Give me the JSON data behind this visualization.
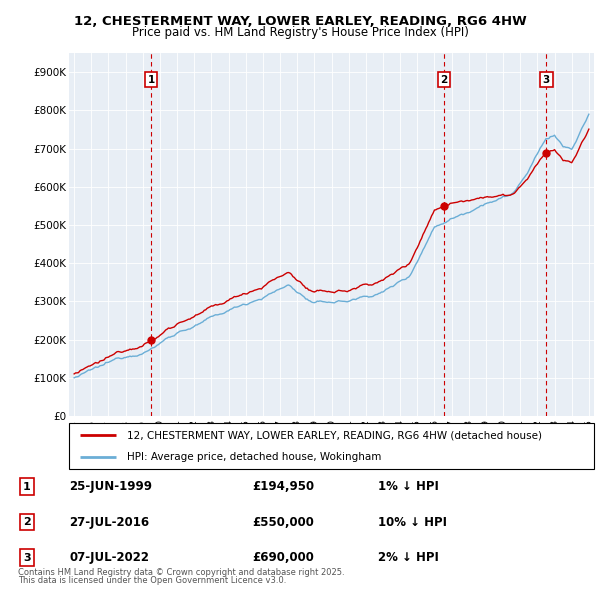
{
  "title1": "12, CHESTERMENT WAY, LOWER EARLEY, READING, RG6 4HW",
  "title2": "Price paid vs. HM Land Registry's House Price Index (HPI)",
  "ylim": [
    0,
    950000
  ],
  "yticks": [
    0,
    100000,
    200000,
    300000,
    400000,
    500000,
    600000,
    700000,
    800000,
    900000
  ],
  "ytick_labels": [
    "£0",
    "£100K",
    "£200K",
    "£300K",
    "£400K",
    "£500K",
    "£600K",
    "£700K",
    "£800K",
    "£900K"
  ],
  "legend_line1": "12, CHESTERMENT WAY, LOWER EARLEY, READING, RG6 4HW (detached house)",
  "legend_line2": "HPI: Average price, detached house, Wokingham",
  "transactions": [
    {
      "num": 1,
      "date": "25-JUN-1999",
      "price": 194950,
      "pct": "1% ↓ HPI",
      "year": 1999.49
    },
    {
      "num": 2,
      "date": "27-JUL-2016",
      "price": 550000,
      "pct": "10% ↓ HPI",
      "year": 2016.57
    },
    {
      "num": 3,
      "date": "07-JUL-2022",
      "price": 690000,
      "pct": "2% ↓ HPI",
      "year": 2022.52
    }
  ],
  "footnote1": "Contains HM Land Registry data © Crown copyright and database right 2025.",
  "footnote2": "This data is licensed under the Open Government Licence v3.0.",
  "hpi_color": "#6baed6",
  "price_color": "#cc0000",
  "vline_color": "#cc0000",
  "chart_bg": "#e8eef5",
  "grid_color": "#ffffff"
}
